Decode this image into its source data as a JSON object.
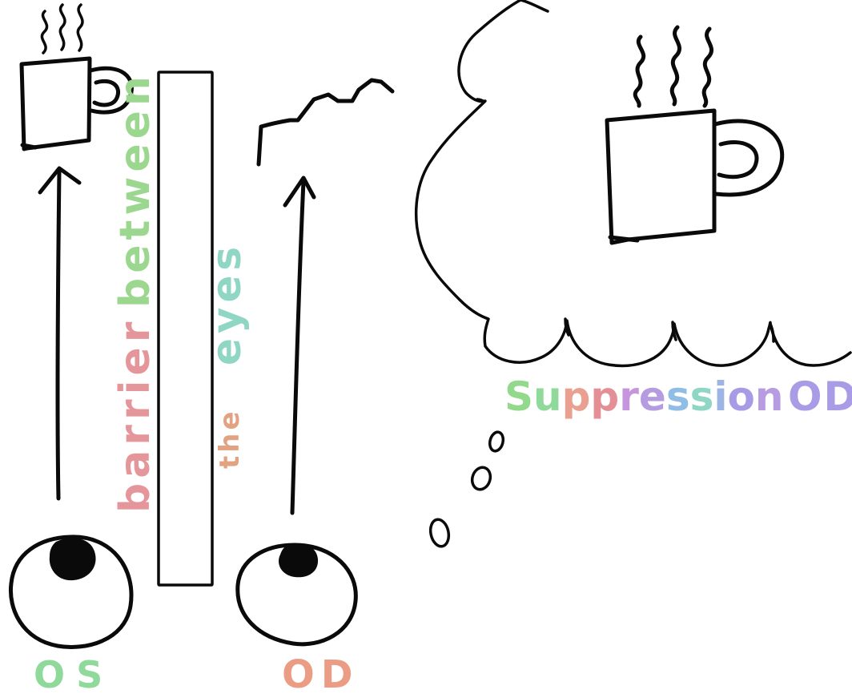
{
  "labels": {
    "left_eye": "OS",
    "right_eye": "OD",
    "barrier_left": [
      "barrier",
      "between"
    ],
    "barrier_right": [
      "the",
      "eyes"
    ],
    "thought": [
      "Suppression",
      "OD"
    ]
  },
  "colors": {
    "os": "#8fd99a",
    "od": "#ea9c84",
    "barrier": "#e5969a",
    "between": "#9cd78f",
    "the": "#e2a383",
    "eyes": "#8fd6c4",
    "suppression": [
      "#93d98b",
      "#8fd99a",
      "#e9a090",
      "#e48e96",
      "#c795dd",
      "#b59be0",
      "#8fbde6",
      "#8fd6c4",
      "#9db4e4",
      "#a79be6",
      "#b79ce2"
    ],
    "od_thought": "#a99be6",
    "ink": "#0a0a0a"
  },
  "icons": [
    "coffee-mug-icon",
    "eye-icon",
    "thought-bubble-icon",
    "arrow-up-icon"
  ]
}
